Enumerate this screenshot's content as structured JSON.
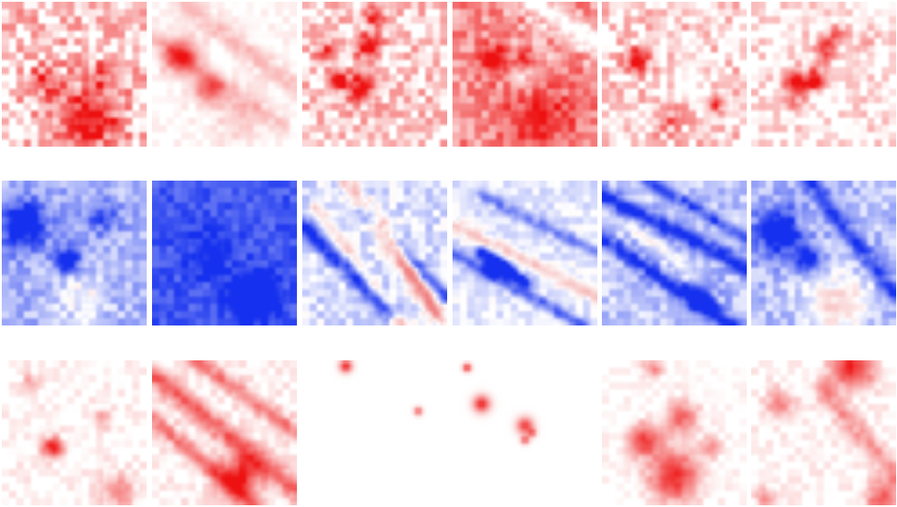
{
  "figure": {
    "rows": [
      {
        "scheme": "red",
        "colors": {
          "low": "#ffffff",
          "high": "#ee1111"
        },
        "panels": [
          1,
          2,
          3,
          4,
          5,
          6
        ]
      },
      {
        "scheme": "diverging",
        "colors": {
          "neg": "#1530ee",
          "mid": "#ffffff",
          "pos": "#f08080"
        },
        "panels": [
          1,
          2,
          3,
          4,
          5,
          6
        ]
      },
      {
        "scheme": "red",
        "colors": {
          "low": "#ffffff",
          "high": "#ee1111"
        },
        "panels": [
          1,
          2,
          3,
          4,
          5,
          6
        ]
      }
    ]
  }
}
